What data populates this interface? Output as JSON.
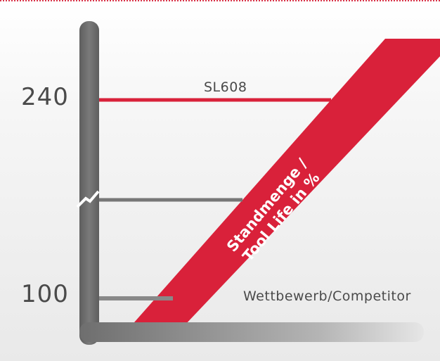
{
  "chart_data": {
    "type": "bar",
    "categories": [
      "SL608",
      "",
      "Wettbewerb/Competitor"
    ],
    "values": [
      240,
      170,
      100
    ],
    "ylabel": "Standmenge / Tool Life in %",
    "yticks": [
      100,
      240
    ],
    "axis_break": true,
    "colors": {
      "highlight": "#d9213a",
      "neutral": "#7a7a7a",
      "axis": "#6e6e6e"
    }
  },
  "labels": {
    "tick_top": "240",
    "tick_bottom": "100",
    "series_top": "SL608",
    "series_bottom": "Wettbewerb/Competitor",
    "band_line1": "Standmenge /",
    "band_line2": "Tool Life in %"
  }
}
